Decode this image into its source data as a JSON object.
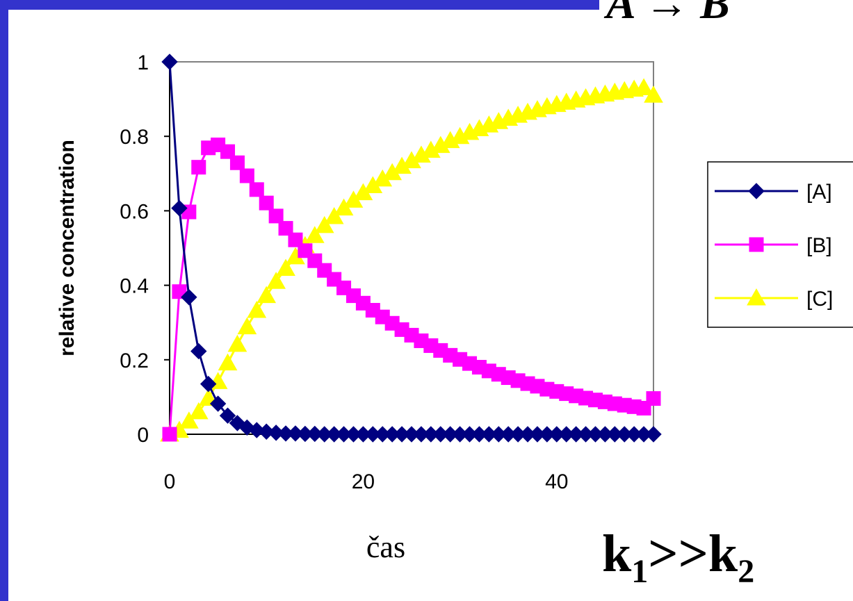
{
  "colors": {
    "slide_border": "#3333cc",
    "A": "#000080",
    "B": "#ff00ff",
    "C": "#ffff00",
    "plot_border": "#808080"
  },
  "header_fragment": "A → B",
  "rate_note": {
    "k": "k",
    "sub1": "1",
    "op": ">>",
    "sub2": "2"
  },
  "chart_data": {
    "type": "line",
    "title": "",
    "xlabel": "čas",
    "ylabel": "relative concentration",
    "xlim": [
      0,
      50
    ],
    "ylim": [
      0,
      1
    ],
    "xticks": [
      "0",
      "20",
      "40"
    ],
    "yticks": [
      "0",
      "0.2",
      "0.4",
      "0.6",
      "0.8",
      "1"
    ],
    "legend_position": "right",
    "x": [
      0,
      1,
      2,
      3,
      4,
      5,
      6,
      7,
      8,
      9,
      10,
      11,
      12,
      13,
      14,
      15,
      16,
      17,
      18,
      19,
      20,
      21,
      22,
      23,
      24,
      25,
      26,
      27,
      28,
      29,
      30,
      31,
      32,
      33,
      34,
      35,
      36,
      37,
      38,
      39,
      40,
      41,
      42,
      43,
      44,
      45,
      46,
      47,
      48,
      49,
      50
    ],
    "series": [
      {
        "name": "[A]",
        "color_key": "A",
        "marker": "diamond",
        "values": [
          1.0,
          0.607,
          0.368,
          0.223,
          0.135,
          0.082,
          0.05,
          0.03,
          0.018,
          0.011,
          0.007,
          0.004,
          0.002,
          0.002,
          0.001,
          0.001,
          0,
          0,
          0,
          0,
          0,
          0,
          0,
          0,
          0,
          0,
          0,
          0,
          0,
          0,
          0,
          0,
          0,
          0,
          0,
          0,
          0,
          0,
          0,
          0,
          0,
          0,
          0,
          0,
          0,
          0,
          0,
          0,
          0,
          0,
          0
        ]
      },
      {
        "name": "[B]",
        "color_key": "B",
        "marker": "square",
        "values": [
          0,
          0.383,
          0.597,
          0.717,
          0.769,
          0.777,
          0.759,
          0.729,
          0.694,
          0.657,
          0.621,
          0.586,
          0.553,
          0.522,
          0.493,
          0.466,
          0.44,
          0.416,
          0.393,
          0.372,
          0.352,
          0.333,
          0.315,
          0.298,
          0.281,
          0.266,
          0.251,
          0.238,
          0.225,
          0.212,
          0.201,
          0.19,
          0.18,
          0.17,
          0.161,
          0.152,
          0.144,
          0.136,
          0.129,
          0.121,
          0.115,
          0.109,
          0.103,
          0.097,
          0.092,
          0.087,
          0.082,
          0.078,
          0.074,
          0.07,
          0.096
        ]
      },
      {
        "name": "[C]",
        "color_key": "C",
        "marker": "triangle",
        "values": [
          0,
          0.01,
          0.035,
          0.06,
          0.096,
          0.141,
          0.191,
          0.241,
          0.288,
          0.332,
          0.372,
          0.41,
          0.445,
          0.476,
          0.506,
          0.533,
          0.56,
          0.584,
          0.607,
          0.628,
          0.648,
          0.667,
          0.685,
          0.702,
          0.719,
          0.734,
          0.749,
          0.762,
          0.775,
          0.788,
          0.799,
          0.81,
          0.82,
          0.83,
          0.839,
          0.848,
          0.856,
          0.864,
          0.871,
          0.879,
          0.885,
          0.891,
          0.897,
          0.903,
          0.908,
          0.913,
          0.918,
          0.922,
          0.926,
          0.93,
          0.91
        ]
      }
    ]
  }
}
